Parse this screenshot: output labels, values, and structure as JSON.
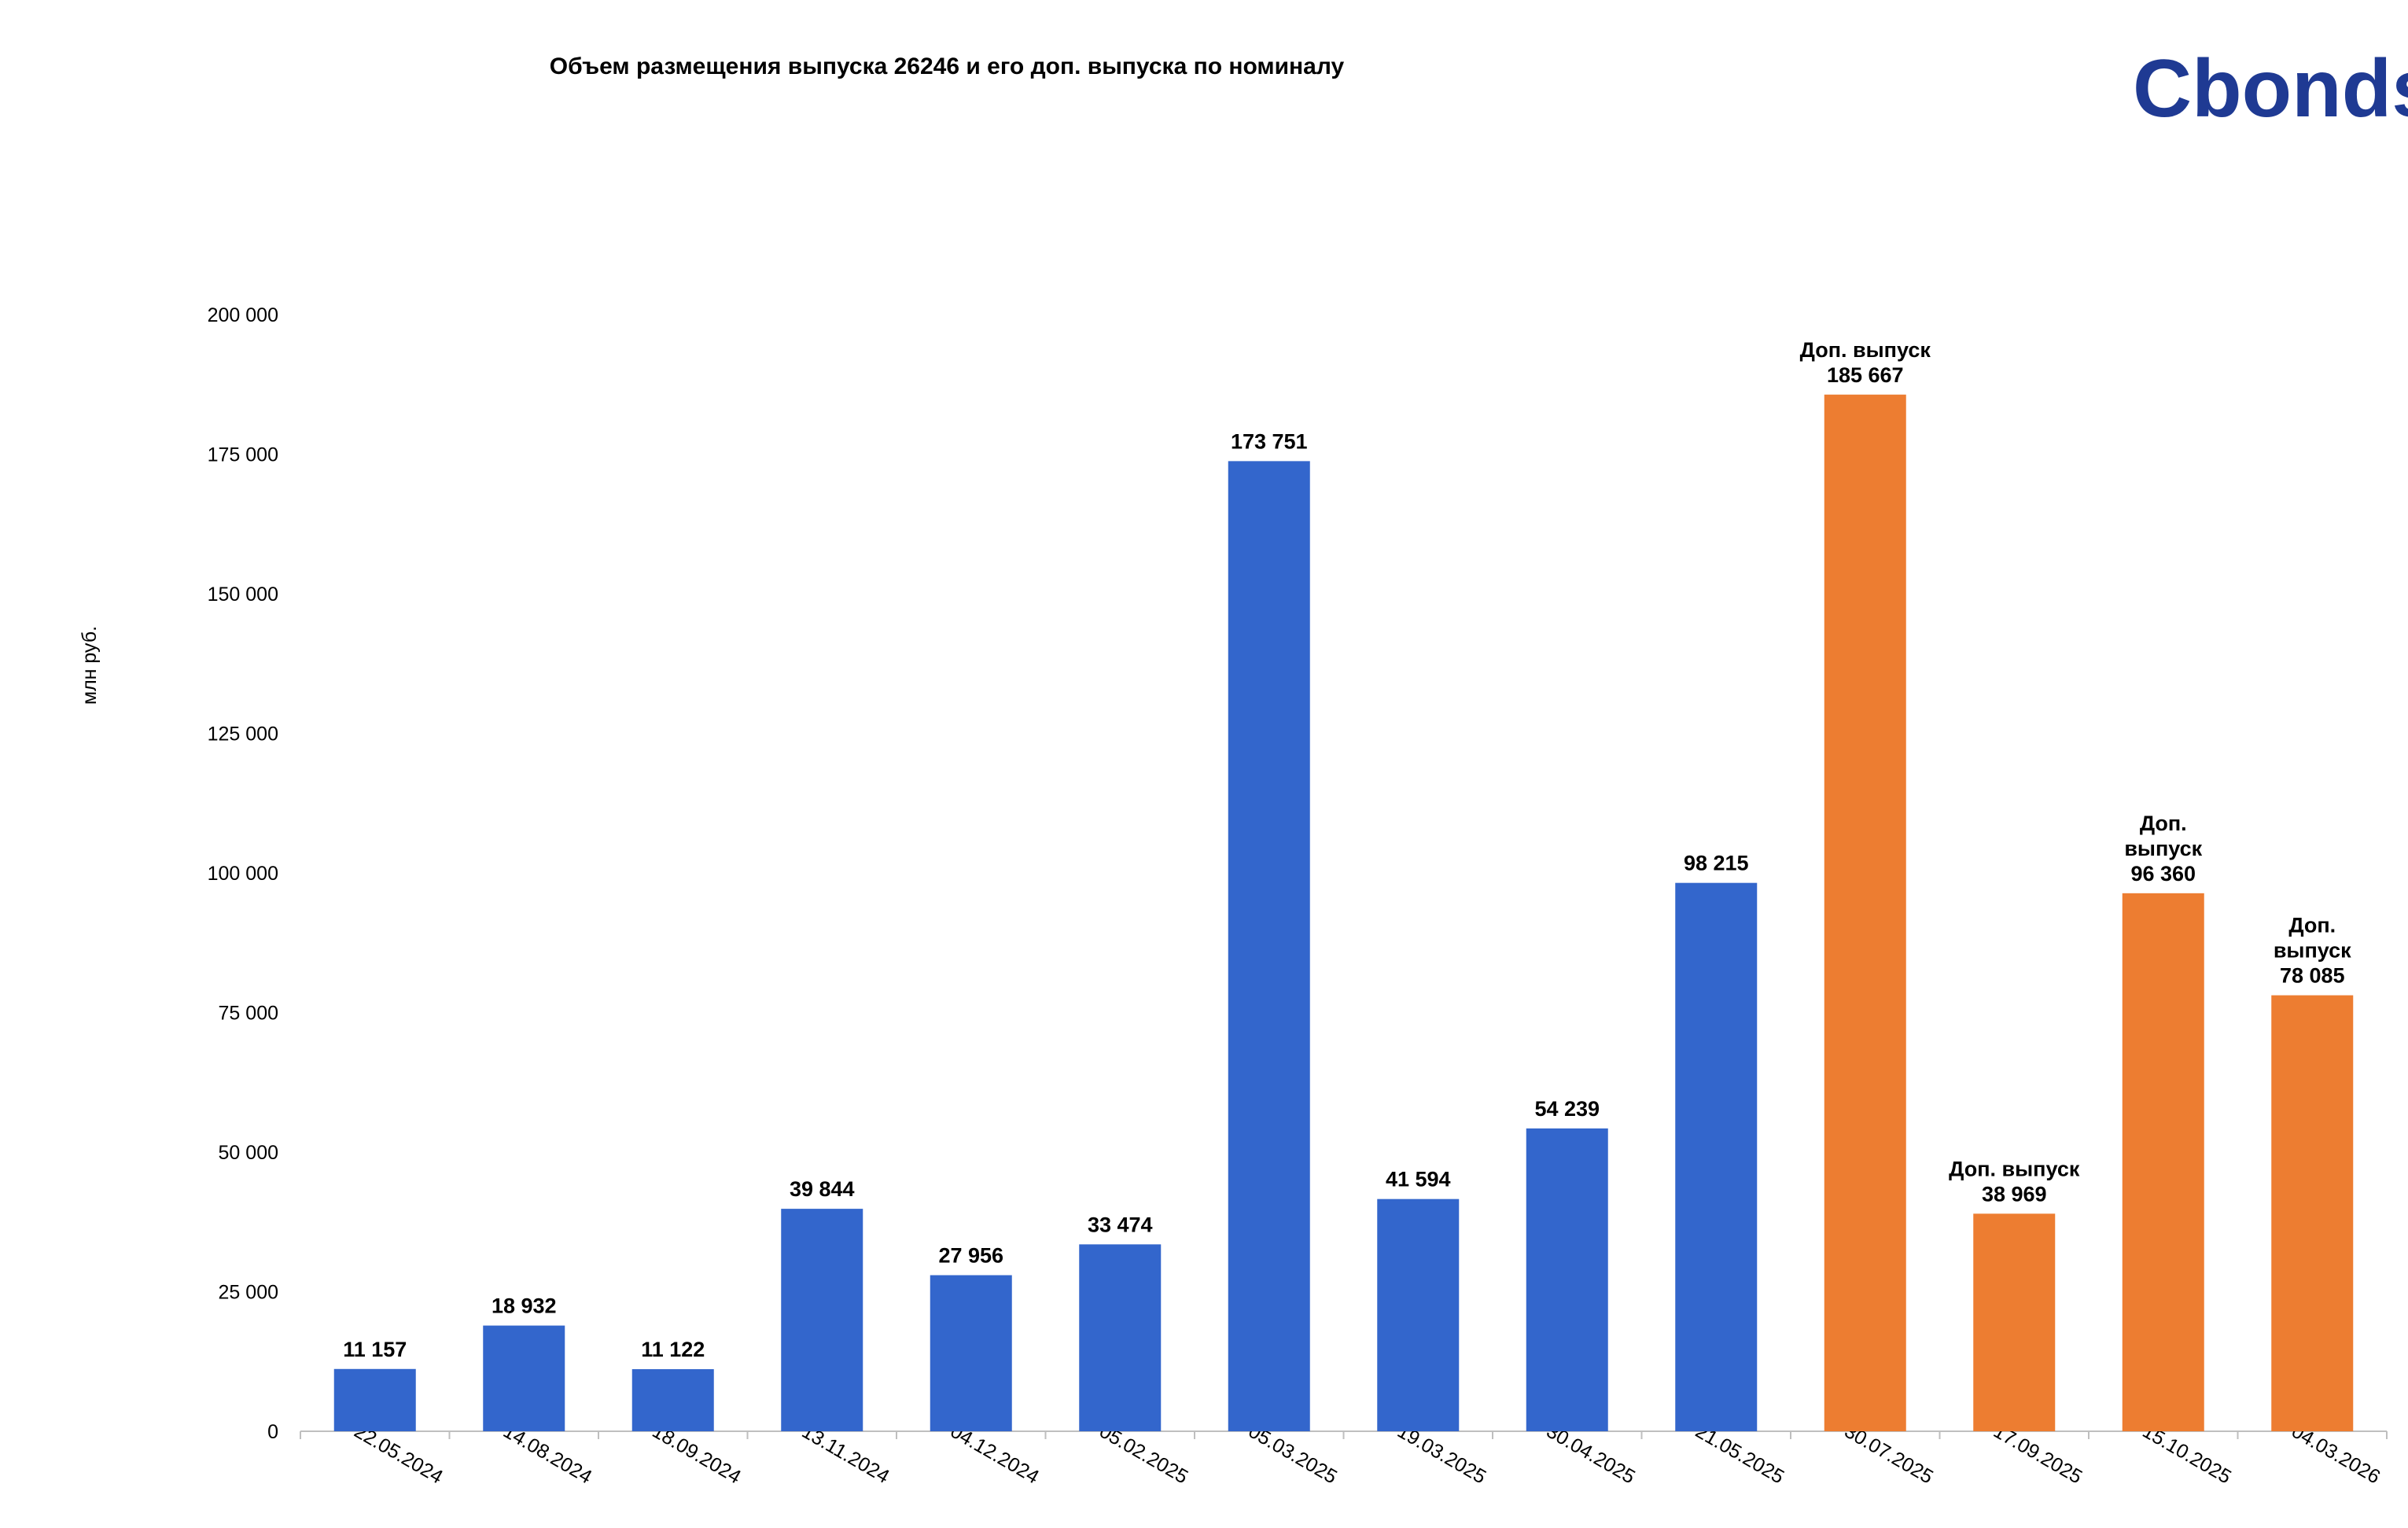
{
  "logo": "Cbonds",
  "colors": {
    "primary": "#3366cc",
    "additional": "#ed7d31",
    "logo": "#1f3a93"
  },
  "chart_data": {
    "type": "bar",
    "title": "Объем размещения выпуска 26246 и его доп. выпуска по номиналу",
    "ylabel": "млн руб.",
    "xlabel": "",
    "ylim": [
      0,
      200000
    ],
    "yticks": [
      0,
      25000,
      50000,
      75000,
      100000,
      125000,
      150000,
      175000,
      200000
    ],
    "ytick_labels": [
      "0",
      "25 000",
      "50 000",
      "75 000",
      "100 000",
      "125 000",
      "150 000",
      "175 000",
      "200 000"
    ],
    "grid": false,
    "categories": [
      "22.05.2024",
      "14.08.2024",
      "18.09.2024",
      "13.11.2024",
      "04.12.2024",
      "05.02.2025",
      "05.03.2025",
      "19.03.2025",
      "30.04.2025",
      "21.05.2025",
      "30.07.2025",
      "17.09.2025",
      "15.10.2025",
      "04.03.2026"
    ],
    "values": [
      11157,
      18932,
      11122,
      39844,
      27956,
      33474,
      173751,
      41594,
      54239,
      98215,
      185667,
      38969,
      96360,
      78085
    ],
    "value_labels": [
      "11 157",
      "18 932",
      "11 122",
      "39 844",
      "27 956",
      "33 474",
      "173 751",
      "41 594",
      "54 239",
      "98 215",
      "185 667",
      "38 969",
      "96 360",
      "78 085"
    ],
    "series_type": [
      "primary",
      "primary",
      "primary",
      "primary",
      "primary",
      "primary",
      "primary",
      "primary",
      "primary",
      "primary",
      "additional",
      "additional",
      "additional",
      "additional"
    ],
    "annotations": [
      null,
      null,
      null,
      null,
      null,
      null,
      null,
      null,
      null,
      null,
      [
        "Доп. выпуск"
      ],
      [
        "Доп. выпуск"
      ],
      [
        "Доп.",
        "выпуск"
      ],
      [
        "Доп.",
        "выпуск"
      ]
    ]
  }
}
